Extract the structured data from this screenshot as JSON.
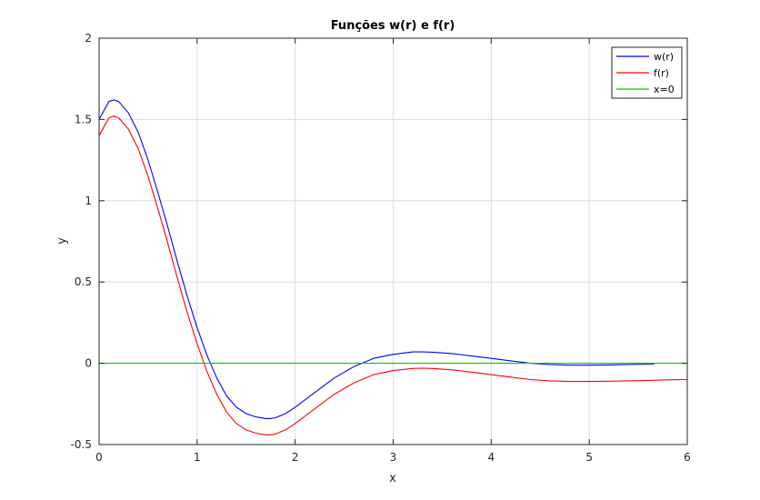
{
  "chart_data": {
    "type": "line",
    "title": "Funções w(r) e f(r)",
    "xlabel": "x",
    "ylabel": "y",
    "xlim": [
      0,
      6
    ],
    "ylim": [
      -0.5,
      2
    ],
    "xticks": [
      0,
      1,
      2,
      3,
      4,
      5,
      6
    ],
    "yticks": [
      -0.5,
      0,
      0.5,
      1,
      1.5,
      2
    ],
    "x_tick_labels": [
      "0",
      "1",
      "2",
      "3",
      "4",
      "5",
      "6"
    ],
    "y_tick_labels": [
      "-0.5",
      "0",
      "0.5",
      "1",
      "1.5",
      "2"
    ],
    "grid": true,
    "legend_position": "top-right",
    "series": [
      {
        "name": "w(r)",
        "color": "#0000ff",
        "x": [
          0,
          0.1,
          0.15,
          0.2,
          0.3,
          0.4,
          0.5,
          0.6,
          0.7,
          0.8,
          0.9,
          1.0,
          1.1,
          1.2,
          1.3,
          1.4,
          1.5,
          1.6,
          1.7,
          1.75,
          1.8,
          1.9,
          2.0,
          2.2,
          2.4,
          2.6,
          2.8,
          3.0,
          3.2,
          3.3,
          3.4,
          3.6,
          3.8,
          4.0,
          4.2,
          4.4,
          4.6,
          4.8,
          5.0,
          5.2,
          5.4,
          5.66
        ],
        "y": [
          1.5,
          1.61,
          1.62,
          1.61,
          1.54,
          1.42,
          1.25,
          1.05,
          0.84,
          0.62,
          0.41,
          0.22,
          0.05,
          -0.09,
          -0.2,
          -0.27,
          -0.31,
          -0.33,
          -0.34,
          -0.34,
          -0.335,
          -0.31,
          -0.27,
          -0.18,
          -0.09,
          -0.02,
          0.03,
          0.055,
          0.07,
          0.07,
          0.068,
          0.06,
          0.045,
          0.03,
          0.015,
          0.0,
          -0.008,
          -0.012,
          -0.012,
          -0.01,
          -0.008,
          -0.005
        ]
      },
      {
        "name": "f(r)",
        "color": "#ff0000",
        "x": [
          0,
          0.1,
          0.15,
          0.2,
          0.3,
          0.4,
          0.5,
          0.6,
          0.7,
          0.8,
          0.9,
          1.0,
          1.1,
          1.2,
          1.3,
          1.4,
          1.5,
          1.6,
          1.7,
          1.75,
          1.8,
          1.9,
          2.0,
          2.2,
          2.4,
          2.6,
          2.8,
          3.0,
          3.2,
          3.3,
          3.4,
          3.6,
          3.8,
          4.0,
          4.2,
          4.4,
          4.6,
          4.8,
          5.0,
          5.2,
          5.4,
          5.6,
          5.8,
          6.0
        ],
        "y": [
          1.4,
          1.51,
          1.52,
          1.51,
          1.44,
          1.32,
          1.15,
          0.95,
          0.74,
          0.52,
          0.31,
          0.12,
          -0.05,
          -0.19,
          -0.3,
          -0.37,
          -0.41,
          -0.43,
          -0.44,
          -0.44,
          -0.435,
          -0.41,
          -0.37,
          -0.28,
          -0.19,
          -0.12,
          -0.07,
          -0.045,
          -0.032,
          -0.03,
          -0.032,
          -0.04,
          -0.055,
          -0.07,
          -0.085,
          -0.1,
          -0.108,
          -0.112,
          -0.112,
          -0.11,
          -0.108,
          -0.105,
          -0.102,
          -0.1
        ]
      },
      {
        "name": "x=0",
        "color": "#00cc00",
        "x": [
          0,
          6
        ],
        "y": [
          0,
          0
        ]
      }
    ]
  }
}
